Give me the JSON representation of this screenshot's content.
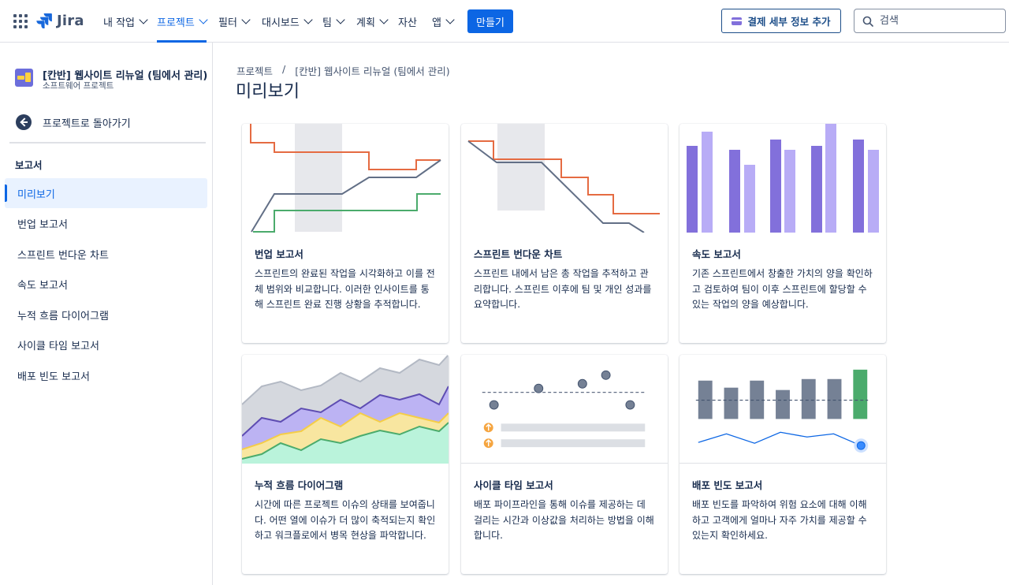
{
  "topnav": {
    "logo_text": "Jira",
    "items": [
      {
        "label": "내 작업",
        "has_menu": true
      },
      {
        "label": "프로젝트",
        "has_menu": true
      },
      {
        "label": "필터",
        "has_menu": true
      },
      {
        "label": "대시보드",
        "has_menu": true
      },
      {
        "label": "팀",
        "has_menu": true
      },
      {
        "label": "계획",
        "has_menu": true
      },
      {
        "label": "자산",
        "has_menu": false
      },
      {
        "label": "앱",
        "has_menu": true
      }
    ],
    "active_item": "프로젝트",
    "create_label": "만들기",
    "billing_label": "결제 세부 정보 추가",
    "search_placeholder": "검색",
    "accent_color": "#0c66e4"
  },
  "sidebar": {
    "project_name": "[칸반] 웹사이트 리뉴얼 (팀에서 관리)",
    "project_type": "소프트웨어 프로젝트",
    "back_label": "프로젝트로 돌아가기",
    "section_heading": "보고서",
    "items": [
      {
        "label": "미리보기",
        "active": true
      },
      {
        "label": "번업 보고서"
      },
      {
        "label": "스프린트 번다운 차트"
      },
      {
        "label": "속도 보고서"
      },
      {
        "label": "누적 흐름 다이어그램"
      },
      {
        "label": "사이클 타임 보고서"
      },
      {
        "label": "배포 빈도 보고서"
      }
    ]
  },
  "main": {
    "breadcrumb": [
      "프로젝트",
      "[칸반] 웹사이트 리뉴얼 (팀에서 관리)"
    ],
    "breadcrumb_separator": "/",
    "title": "미리보기",
    "cards": [
      {
        "title": "번업 보고서",
        "description": "스프린트의 완료된 작업을 시각화하고 이를 전체 범위와 비교합니다. 이러한 인사이트를 통해 스프린트 완료 진행 상황을 추적합니다.",
        "illustration": "burnup-chart-icon"
      },
      {
        "title": "스프린트 번다운 차트",
        "description": "스프린트 내에서 남은 총 작업을 추적하고 관리합니다. 스프린트 이후에 팀 및 개인 성과를 요약합니다.",
        "illustration": "burndown-chart-icon"
      },
      {
        "title": "속도 보고서",
        "description": "기존 스프린트에서 창출한 가치의 양을 확인하고 검토하여 팀이 이후 스프린트에 할당할 수 있는 작업의 양을 예상합니다.",
        "illustration": "velocity-chart-icon"
      },
      {
        "title": "누적 흐름 다이어그램",
        "description": "시간에 따른 프로젝트 이슈의 상태를 보여줍니다. 어떤 열에 이슈가 더 많이 축적되는지 확인하고 워크플로에서 병목 현상을 파악합니다.",
        "illustration": "cumulative-flow-icon"
      },
      {
        "title": "사이클 타임 보고서",
        "description": "배포 파이프라인을 통해 이슈를 제공하는 데 걸리는 시간과 이상값을 처리하는 방법을 이해합니다.",
        "illustration": "cycle-time-icon"
      },
      {
        "title": "배포 빈도 보고서",
        "description": "배포 빈도를 파악하여 위험 요소에 대해 이해하고 고객에게 얼마나 자주 가치를 제공할 수 있는지 확인하세요.",
        "illustration": "deployment-frequency-icon"
      }
    ]
  },
  "colors": {
    "orange": "#e56b42",
    "slate": "#626f86",
    "green": "#4bab6c",
    "purple": "#8270db",
    "light_purple": "#b8acf6",
    "gray_bar": "#758195",
    "blue_dot": "#1d7afc",
    "yellow": "#f5cd47"
  }
}
